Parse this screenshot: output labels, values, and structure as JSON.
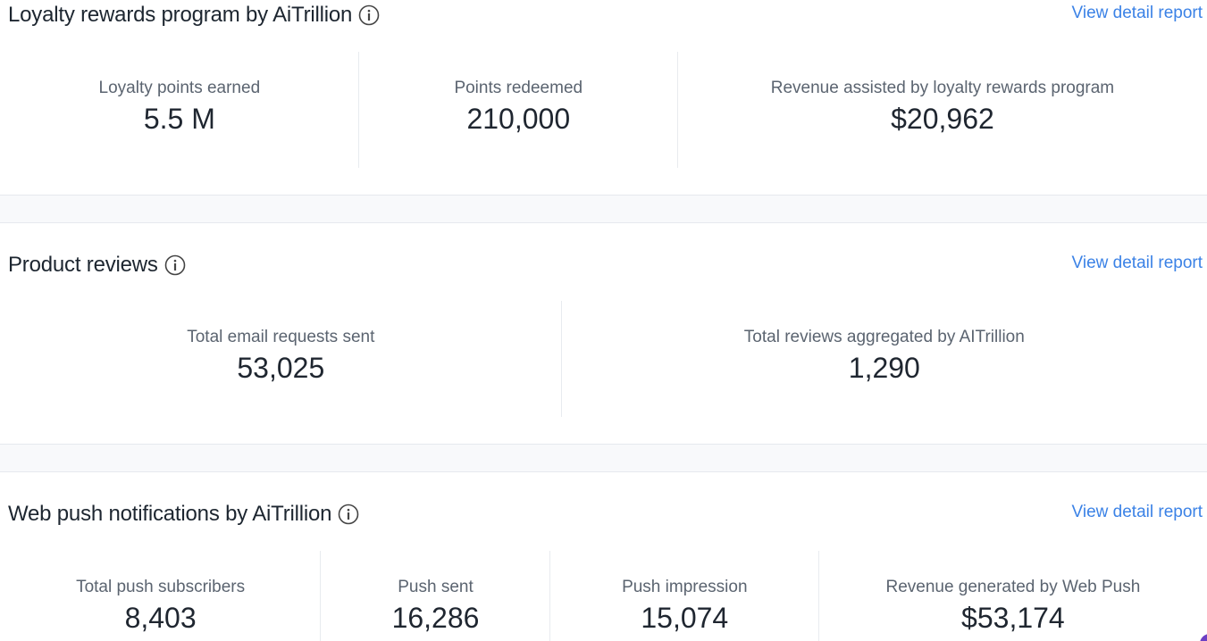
{
  "sections": [
    {
      "title": "Loyalty rewards program by AiTrillion",
      "link": "View detail report",
      "metrics": [
        {
          "label": "Loyalty points earned",
          "value": "5.5 M"
        },
        {
          "label": "Points redeemed",
          "value": "210,000"
        },
        {
          "label": "Revenue assisted by loyalty rewards program",
          "value": "$20,962"
        }
      ]
    },
    {
      "title": "Product reviews",
      "link": "View detail report",
      "metrics": [
        {
          "label": "Total email requests sent",
          "value": "53,025"
        },
        {
          "label": "Total reviews aggregated by AITrillion",
          "value": "1,290"
        }
      ]
    },
    {
      "title": "Web push notifications by AiTrillion",
      "link": "View detail report",
      "metrics": [
        {
          "label": "Total push subscribers",
          "value": "8,403"
        },
        {
          "label": "Push sent",
          "value": "16,286"
        },
        {
          "label": "Push impression",
          "value": "15,074"
        },
        {
          "label": "Revenue generated by Web Push",
          "value": "$53,174"
        }
      ]
    }
  ],
  "colors": {
    "link": "#3b82e6",
    "background_gap": "#f8f9fb",
    "divider": "#e8ebef"
  },
  "icons": {
    "info": "info-circle-icon"
  }
}
